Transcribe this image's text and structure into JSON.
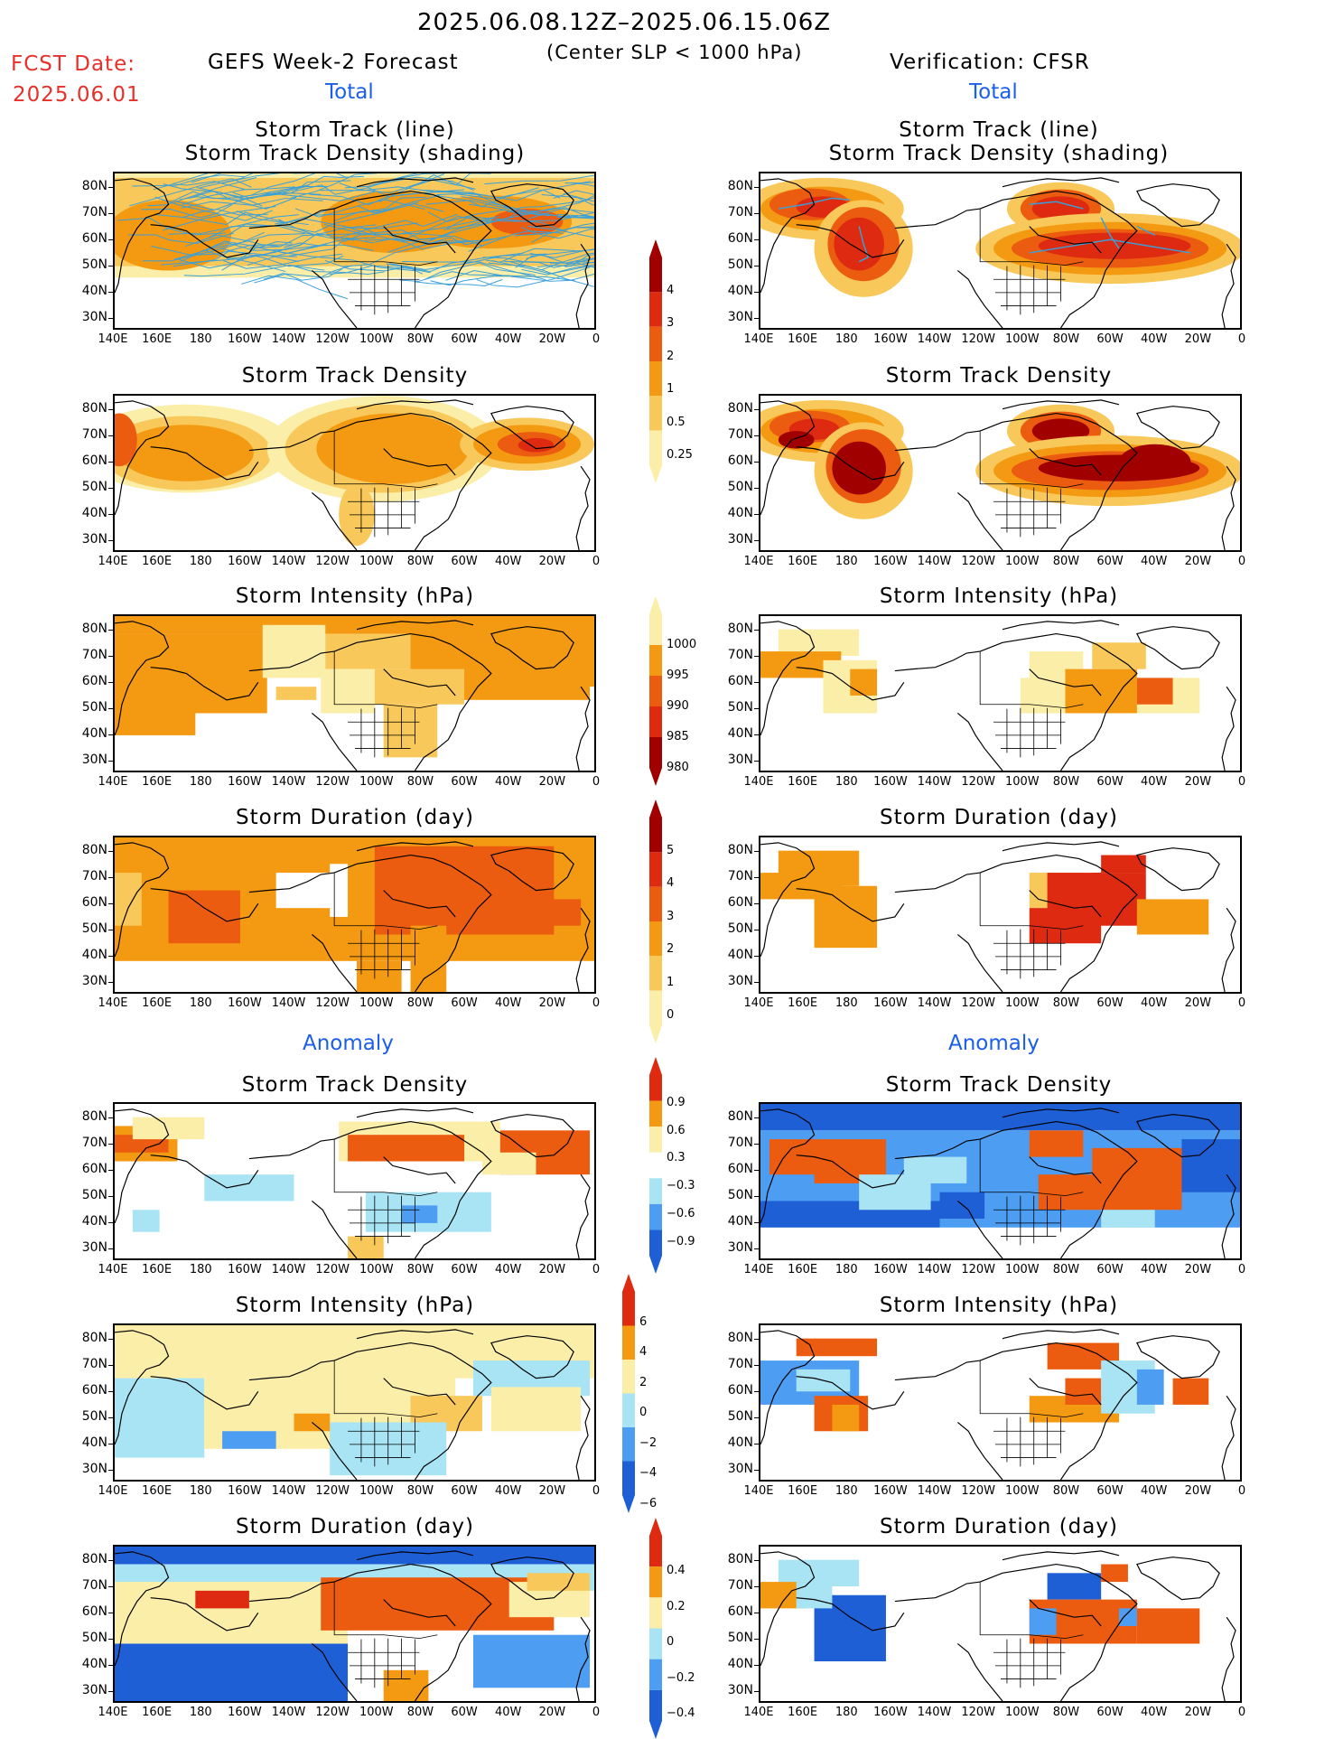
{
  "header": {
    "date_range": "2025.06.08.12Z–2025.06.15.06Z",
    "subtitle": "(Center SLP < 1000 hPa)",
    "fcst_label": "FCST Date:",
    "fcst_date": "2025.06.01",
    "left_title": "GEFS Week-2 Forecast",
    "right_title": "Verification: CFSR",
    "total_label": "Total",
    "anomaly_label": "Anomaly"
  },
  "panel_titles": {
    "track_line": "Storm Track (line)",
    "track_shading": "Storm Track Density (shading)",
    "density": "Storm Track Density",
    "intensity": "Storm Intensity (hPa)",
    "duration": "Storm Duration (day)"
  },
  "lat_labels": [
    "80N",
    "70N",
    "60N",
    "50N",
    "40N",
    "30N"
  ],
  "lon_labels": [
    "140E",
    "160E",
    "180",
    "160W",
    "140W",
    "120W",
    "100W",
    "80W",
    "60W",
    "40W",
    "20W",
    "0"
  ],
  "colorbars": {
    "density_total": [
      "4",
      "3",
      "2",
      "1",
      "0.5",
      "0.25"
    ],
    "intensity_total": [
      "1000",
      "995",
      "990",
      "985",
      "980"
    ],
    "duration_total": [
      "5",
      "4",
      "3",
      "2",
      "1",
      "0"
    ],
    "density_anom": [
      "0.9",
      "0.6",
      "0.3",
      "−0.3",
      "−0.6",
      "−0.9"
    ],
    "intensity_anom": [
      "6",
      "4",
      "2",
      "0",
      "−2",
      "−4",
      "−6"
    ],
    "duration_anom": [
      "0.4",
      "0.2",
      "0",
      "−0.2",
      "−0.4"
    ]
  },
  "colors": {
    "deep_red": "#a00000",
    "red": "#dd2a10",
    "orange_red": "#ec5c10",
    "orange": "#f39a12",
    "light_orange": "#f8c85a",
    "pale_yellow": "#fbeea8",
    "light_blue": "#a8e4f4",
    "blue": "#4d9ef2",
    "dark_blue": "#1e5fd6",
    "track_line": "#3aa0d8"
  }
}
